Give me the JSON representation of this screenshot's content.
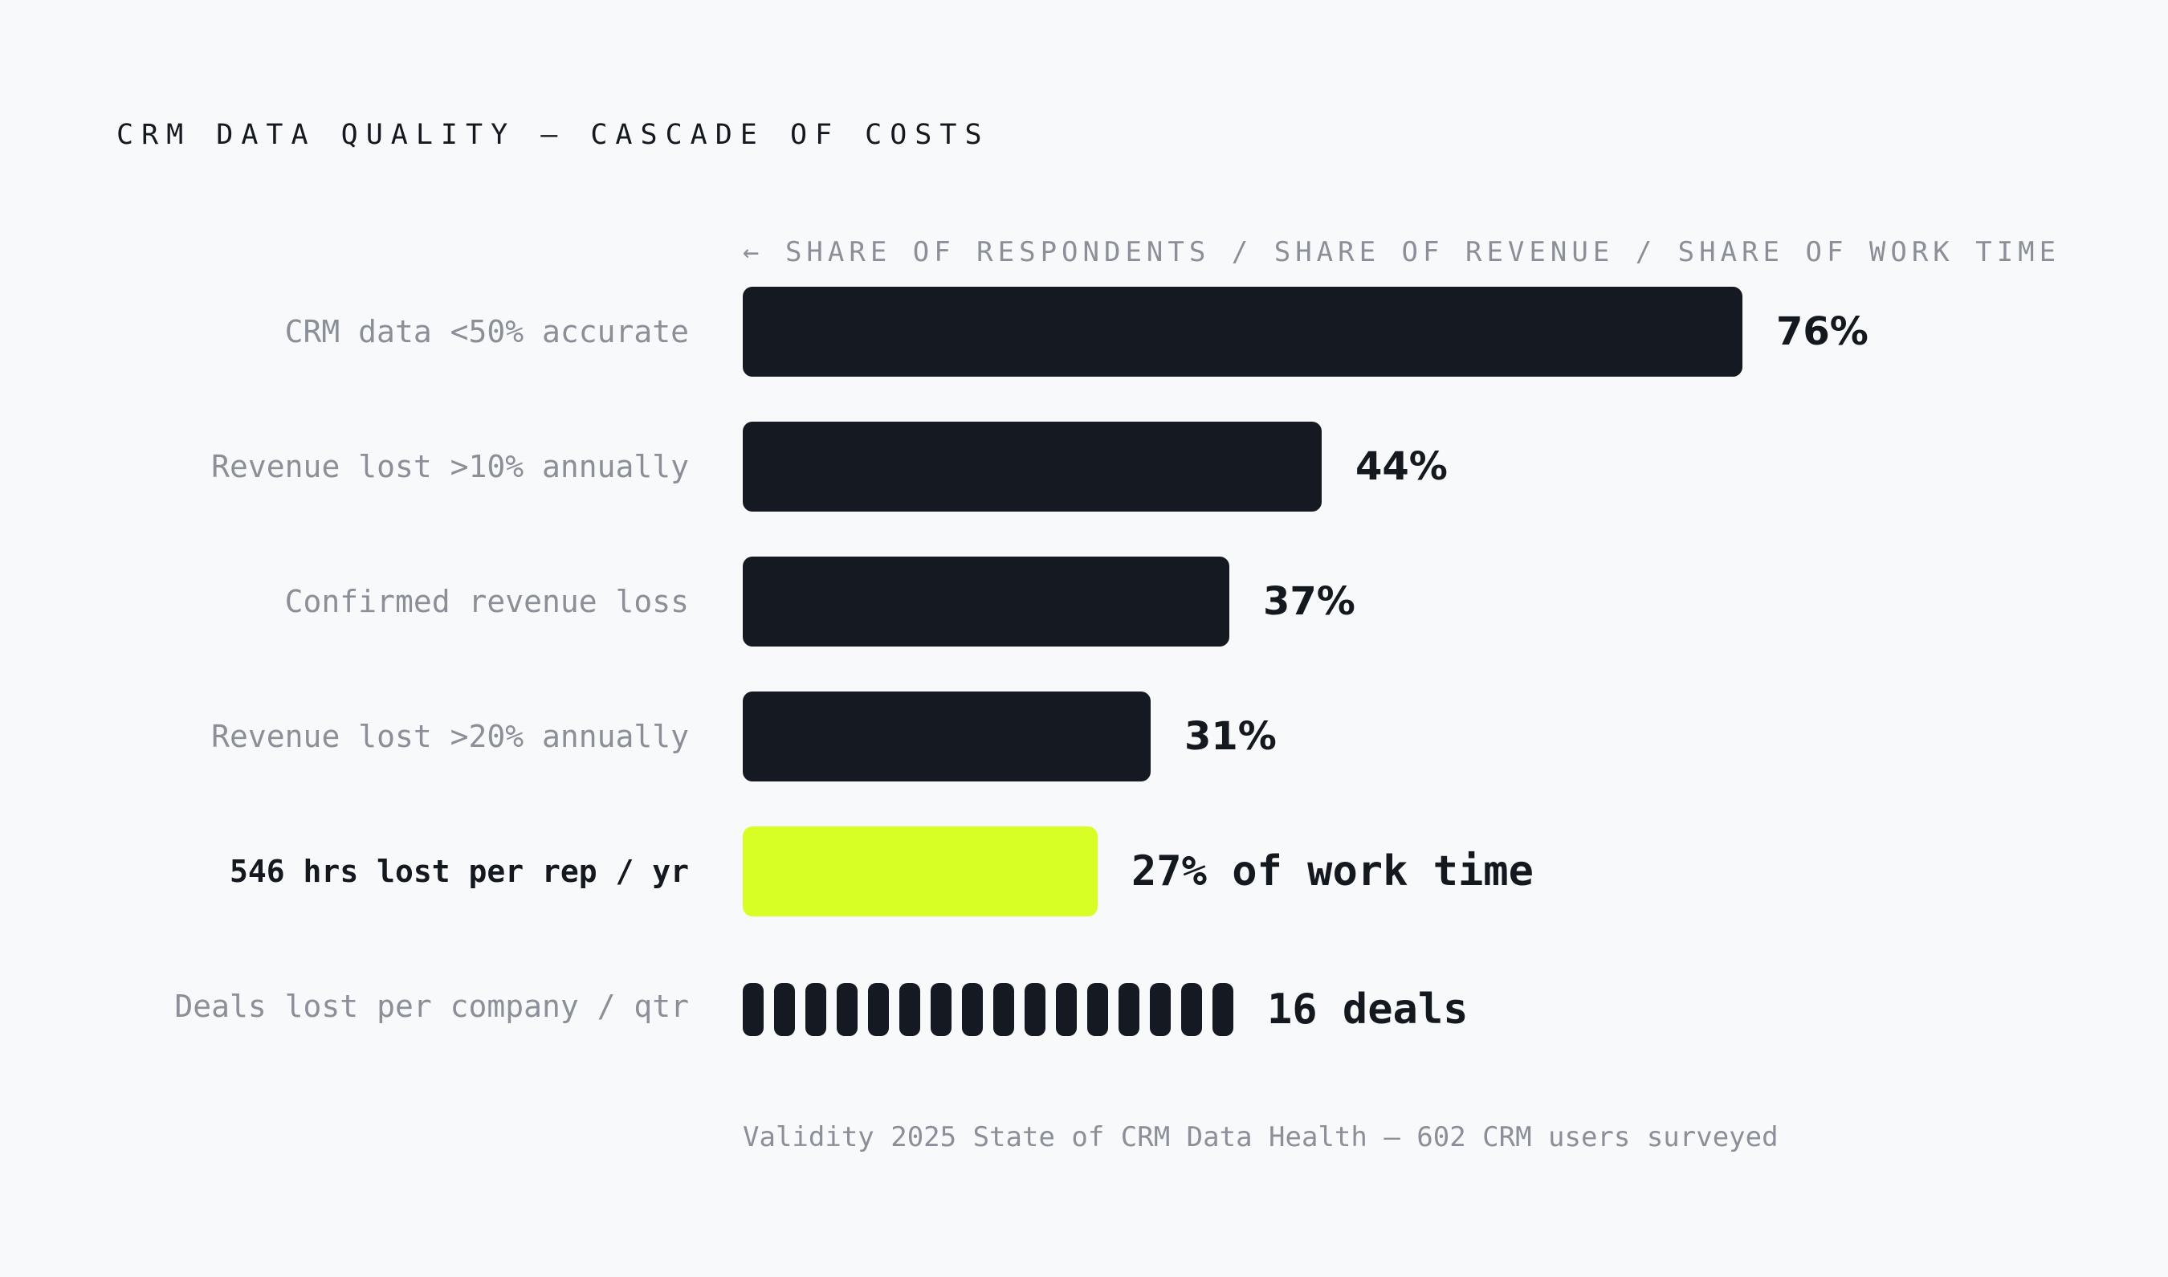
{
  "chart_data": {
    "type": "bar",
    "orientation": "horizontal",
    "title": "CRM DATA QUALITY — CASCADE OF COSTS",
    "axis_note": "← SHARE OF RESPONDENTS / SHARE OF REVENUE / SHARE OF WORK TIME",
    "xlim": [
      0,
      100
    ],
    "grid": false,
    "legend": "none",
    "categories": [
      "CRM data <50% accurate",
      "Revenue lost >10% annually",
      "Confirmed revenue loss",
      "Revenue lost >20% annually",
      "546 hrs lost per rep / yr",
      "Deals lost per company / qtr"
    ],
    "rows": [
      {
        "label": "CRM data <50% accurate",
        "value": 76,
        "value_label": "76%",
        "kind": "bar"
      },
      {
        "label": "Revenue lost >10% annually",
        "value": 44,
        "value_label": "44%",
        "kind": "bar"
      },
      {
        "label": "Confirmed revenue loss",
        "value": 37,
        "value_label": "37%",
        "kind": "bar"
      },
      {
        "label": "Revenue lost >20% annually",
        "value": 31,
        "value_label": "31%",
        "kind": "bar"
      },
      {
        "label": "546 hrs lost per rep / yr",
        "value": 27,
        "value_label": "27% of work time",
        "kind": "bar",
        "highlight": true
      },
      {
        "label": "Deals lost per company / qtr",
        "value": 16,
        "value_label": "16 deals",
        "kind": "count"
      }
    ],
    "source": "Validity 2025 State of CRM Data Health — 602 CRM users surveyed"
  },
  "colors": {
    "background": "#f8f9fb",
    "bar": "#141922",
    "highlight": "#d8ff25",
    "label_muted": "#8b8f98",
    "text_dark": "#14181f"
  }
}
